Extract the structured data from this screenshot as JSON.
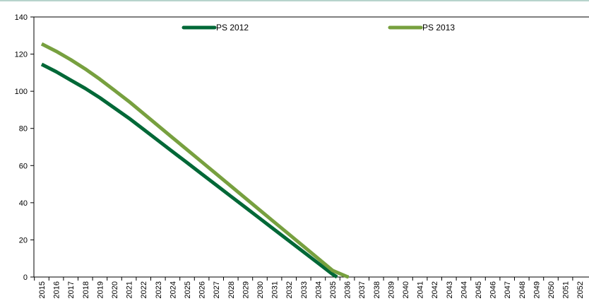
{
  "chart_data": {
    "type": "line",
    "title": "",
    "xlabel": "",
    "ylabel": "",
    "x": [
      "2015",
      "2016",
      "2017",
      "2018",
      "2019",
      "2020",
      "2021",
      "2022",
      "2023",
      "2024",
      "2025",
      "2026",
      "2027",
      "2028",
      "2029",
      "2030",
      "2031",
      "2032",
      "2033",
      "2034",
      "2035",
      "2036",
      "2037",
      "2038",
      "2039",
      "2040",
      "2041",
      "2042",
      "2043",
      "2044",
      "2045",
      "2046",
      "2047",
      "2048",
      "2049",
      "2050",
      "2051",
      "2052"
    ],
    "ylim": [
      0,
      140
    ],
    "yticks": [
      0,
      20,
      40,
      60,
      80,
      100,
      120,
      140
    ],
    "grid": false,
    "legend_position": "top",
    "series": [
      {
        "name": "PS 2012",
        "color": "#006837",
        "points": [
          [
            2015,
            114.5
          ],
          [
            2016,
            110.5
          ],
          [
            2017,
            106.0
          ],
          [
            2018,
            101.5
          ],
          [
            2019,
            96.5
          ],
          [
            2020,
            91.0
          ],
          [
            2021,
            85.5
          ],
          [
            2022,
            79.5
          ],
          [
            2023,
            73.5
          ],
          [
            2024,
            67.5
          ],
          [
            2025,
            61.5
          ],
          [
            2026,
            55.5
          ],
          [
            2027,
            49.5
          ],
          [
            2028,
            43.5
          ],
          [
            2029,
            37.5
          ],
          [
            2030,
            31.5
          ],
          [
            2031,
            25.5
          ],
          [
            2032,
            19.5
          ],
          [
            2033,
            13.5
          ],
          [
            2034,
            7.5
          ],
          [
            2035,
            1.5
          ],
          [
            2035.3,
            0
          ]
        ]
      },
      {
        "name": "PS 2013",
        "color": "#77a03f",
        "points": [
          [
            2015,
            125.5
          ],
          [
            2016,
            121.5
          ],
          [
            2017,
            117.0
          ],
          [
            2018,
            112.0
          ],
          [
            2019,
            106.5
          ],
          [
            2020,
            100.5
          ],
          [
            2021,
            94.5
          ],
          [
            2022,
            88.0
          ],
          [
            2023,
            81.5
          ],
          [
            2024,
            75.0
          ],
          [
            2025,
            68.5
          ],
          [
            2026,
            62.0
          ],
          [
            2027,
            55.5
          ],
          [
            2028,
            49.0
          ],
          [
            2029,
            42.5
          ],
          [
            2030,
            36.0
          ],
          [
            2031,
            29.5
          ],
          [
            2032,
            23.0
          ],
          [
            2033,
            16.5
          ],
          [
            2034,
            10.0
          ],
          [
            2035,
            3.5
          ],
          [
            2036,
            0.2
          ],
          [
            2036.1,
            0
          ]
        ]
      }
    ]
  }
}
